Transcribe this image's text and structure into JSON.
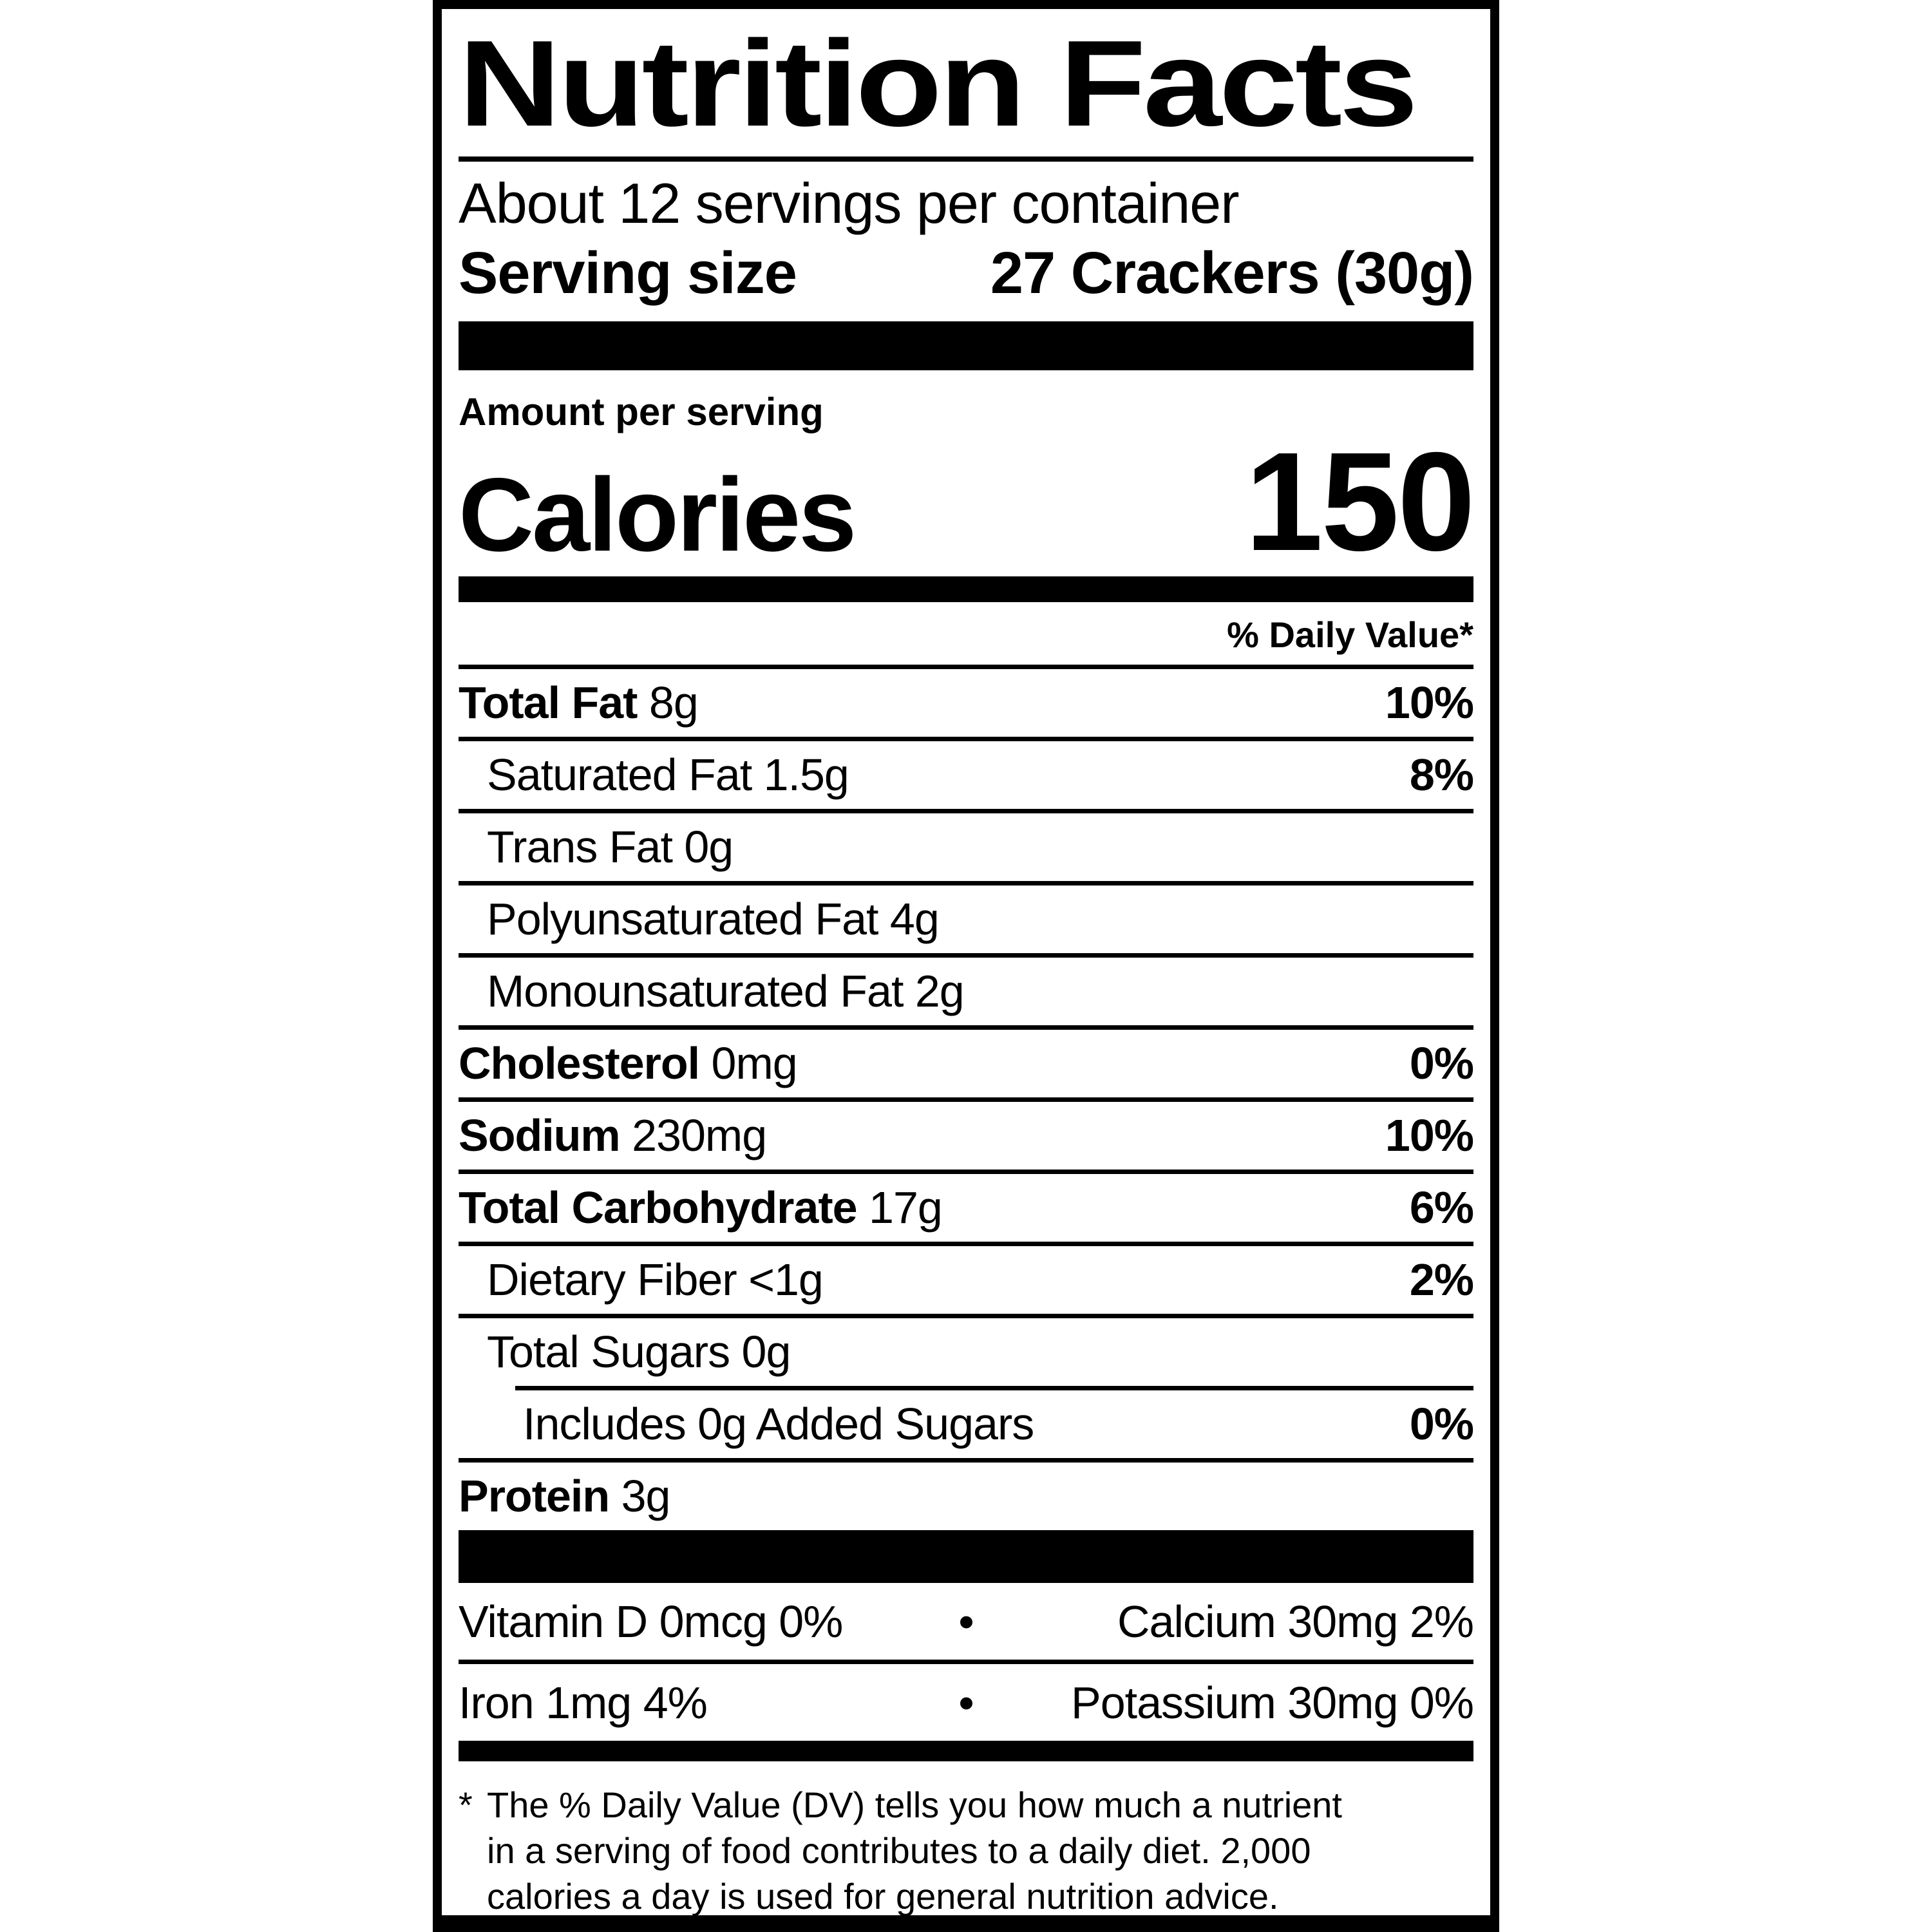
{
  "colors": {
    "text": "#000000",
    "background": "#ffffff"
  },
  "label": {
    "title": "Nutrition Facts",
    "servings_per_container": "About 12 servings per container",
    "serving_size_label": "Serving size",
    "serving_size_value": "27 Crackers (30g)",
    "amount_per_serving": "Amount per serving",
    "calories_label": "Calories",
    "calories_value": "150",
    "daily_value_header": "% Daily Value*",
    "nutrients": [
      {
        "name": "Total Fat",
        "amount": "8g",
        "dv": "10%",
        "bold": true,
        "indent": 0
      },
      {
        "name": "Saturated Fat",
        "amount": "1.5g",
        "dv": "8%",
        "bold": false,
        "indent": 1
      },
      {
        "name": "Trans Fat",
        "amount": "0g",
        "dv": "",
        "bold": false,
        "indent": 1
      },
      {
        "name": "Polyunsaturated Fat",
        "amount": "4g",
        "dv": "",
        "bold": false,
        "indent": 1
      },
      {
        "name": "Monounsaturated Fat",
        "amount": "2g",
        "dv": "",
        "bold": false,
        "indent": 1
      },
      {
        "name": "Cholesterol",
        "amount": "0mg",
        "dv": "0%",
        "bold": true,
        "indent": 0
      },
      {
        "name": "Sodium",
        "amount": "230mg",
        "dv": "10%",
        "bold": true,
        "indent": 0
      },
      {
        "name": "Total Carbohydrate",
        "amount": "17g",
        "dv": "6%",
        "bold": true,
        "indent": 0
      },
      {
        "name": "Dietary Fiber",
        "amount": "<1g",
        "dv": "2%",
        "bold": false,
        "indent": 1
      },
      {
        "name": "Total Sugars",
        "amount": "0g",
        "dv": "",
        "bold": false,
        "indent": 1
      },
      {
        "name": "Includes 0g Added Sugars",
        "amount": "",
        "dv": "0%",
        "bold": false,
        "indent": 2
      },
      {
        "name": "Protein",
        "amount": "3g",
        "dv": "",
        "bold": true,
        "indent": 0
      }
    ],
    "micronutrients": [
      {
        "left": "Vitamin D 0mcg 0%",
        "bullet": "•",
        "right": "Calcium 30mg 2%"
      },
      {
        "left": "Iron 1mg 4%",
        "bullet": "•",
        "right": "Potassium 30mg 0%"
      }
    ],
    "footnote_asterisk": "*",
    "footnote_lines": [
      "The % Daily Value (DV) tells you how much a nutrient",
      "in a serving of food contributes to a daily diet. 2,000",
      "calories a day is used for general nutrition advice."
    ]
  }
}
